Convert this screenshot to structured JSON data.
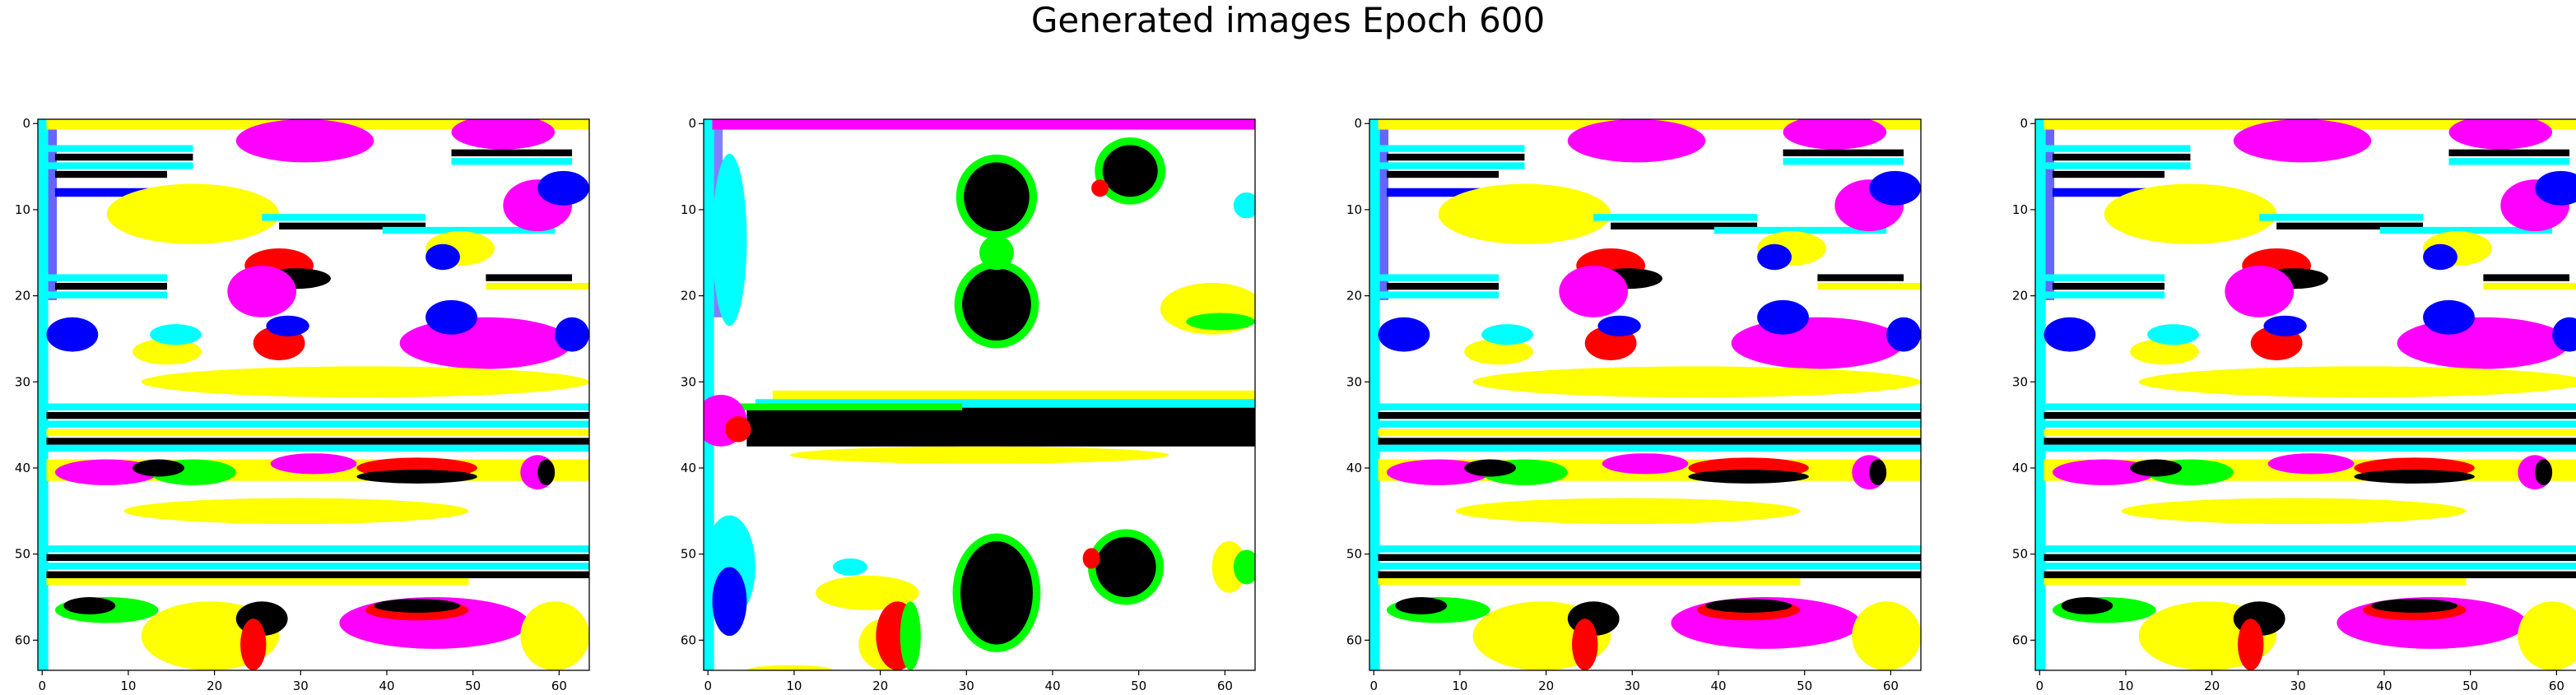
{
  "figure": {
    "title": "Generated images Epoch 600"
  },
  "axes": {
    "x_ticks": [
      "0",
      "10",
      "20",
      "30",
      "40",
      "50",
      "60"
    ],
    "y_ticks": [
      "0",
      "10",
      "20",
      "30",
      "40",
      "50",
      "60"
    ],
    "pixel_extent": [
      0,
      64
    ]
  },
  "colors": {
    "white": "#ffffff",
    "yellow": "#ffff00",
    "magenta": "#ff00ff",
    "cyan": "#00ffff",
    "red": "#ff0000",
    "green": "#00ff00",
    "blue": "#0000ff",
    "black": "#000000"
  },
  "panels": [
    {
      "name": "generated-image-1",
      "style": "stripes"
    },
    {
      "name": "generated-image-2",
      "style": "blobs"
    },
    {
      "name": "generated-image-3",
      "style": "stripes"
    },
    {
      "name": "generated-image-4",
      "style": "stripes"
    }
  ]
}
